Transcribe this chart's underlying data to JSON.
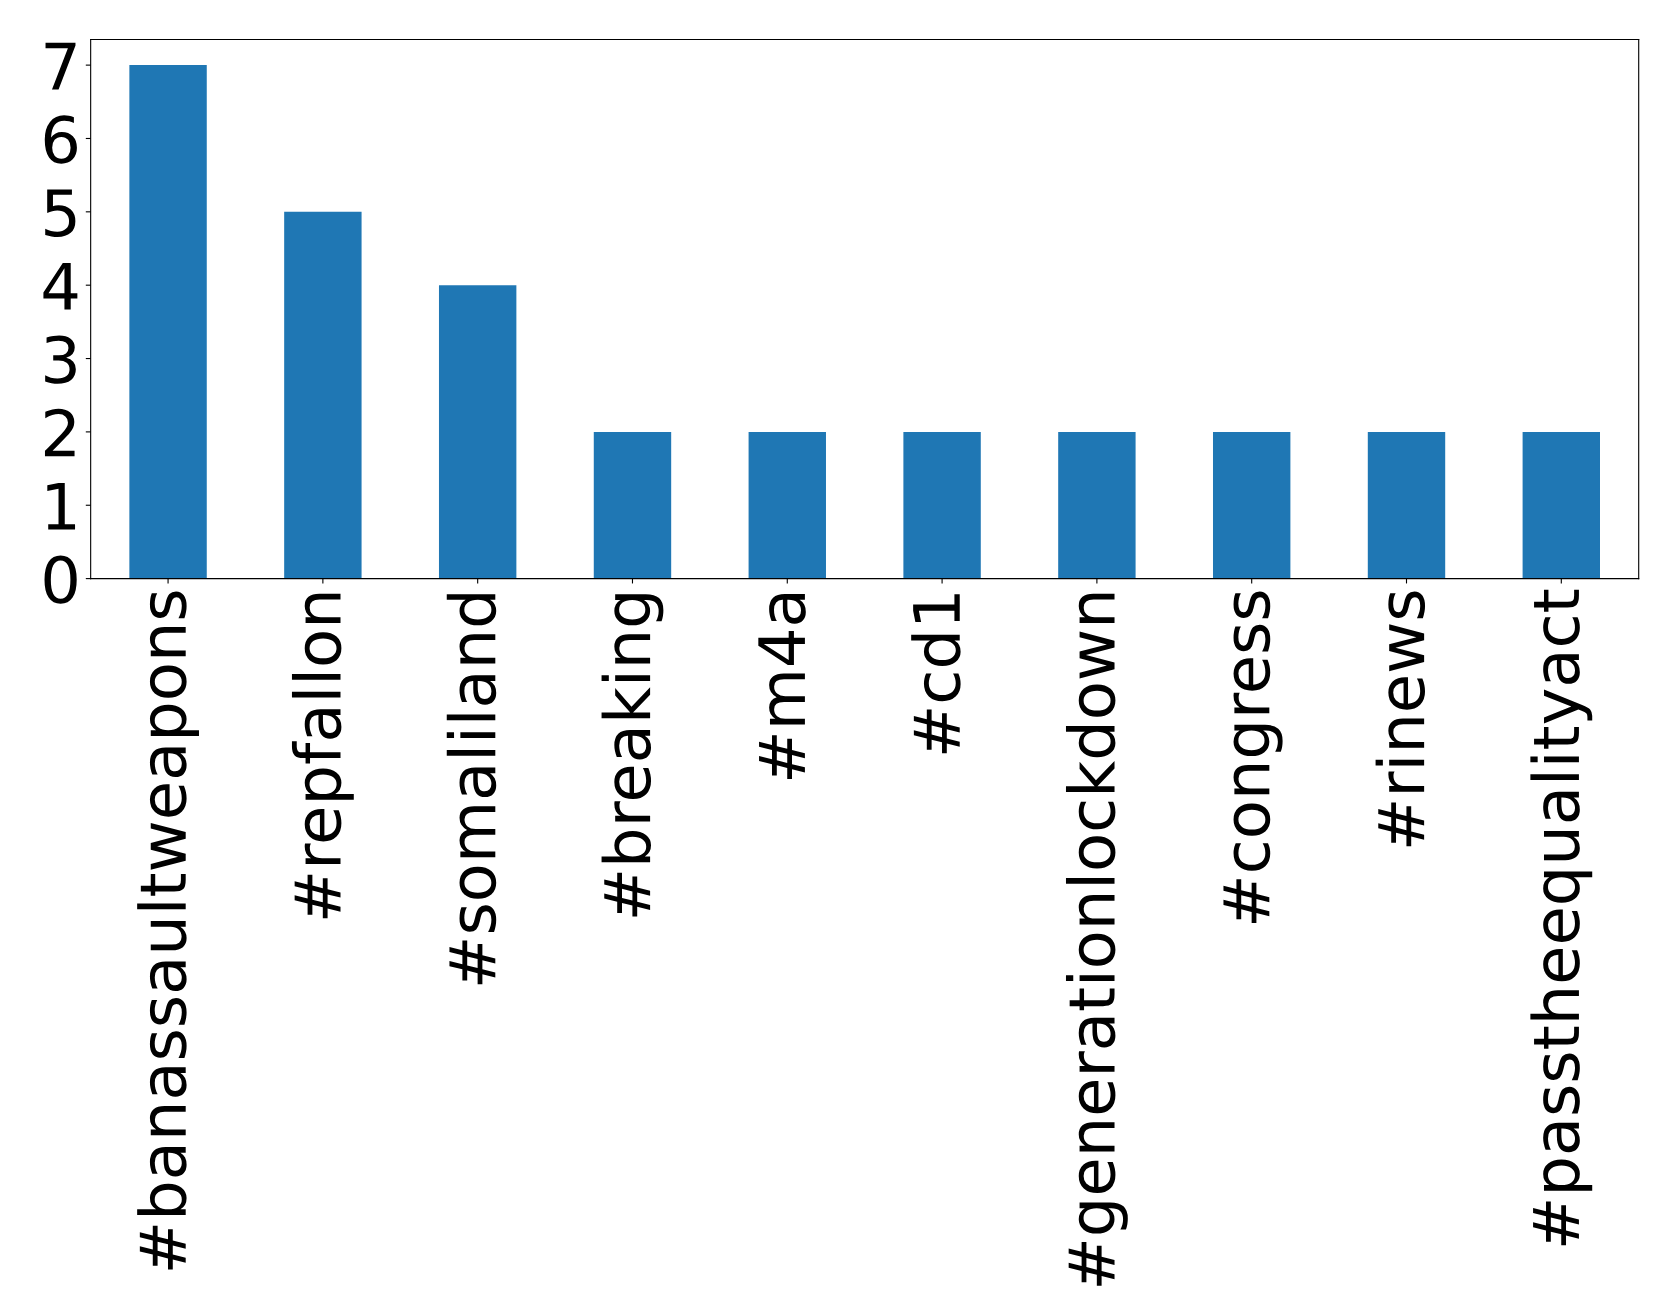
{
  "chart_data": {
    "type": "bar",
    "categories": [
      "#banassaultweapons",
      "#repfallon",
      "#somaliland",
      "#breaking",
      "#m4a",
      "#cd1",
      "#generationlockdown",
      "#congress",
      "#rinews",
      "#passtheequalityact"
    ],
    "values": [
      7,
      5,
      4,
      2,
      2,
      2,
      2,
      2,
      2,
      2
    ],
    "color": "#1f77b4",
    "ylim": [
      0,
      7.35
    ],
    "yticks": [
      0,
      1,
      2,
      3,
      4,
      5,
      6,
      7
    ],
    "grid": false
  }
}
